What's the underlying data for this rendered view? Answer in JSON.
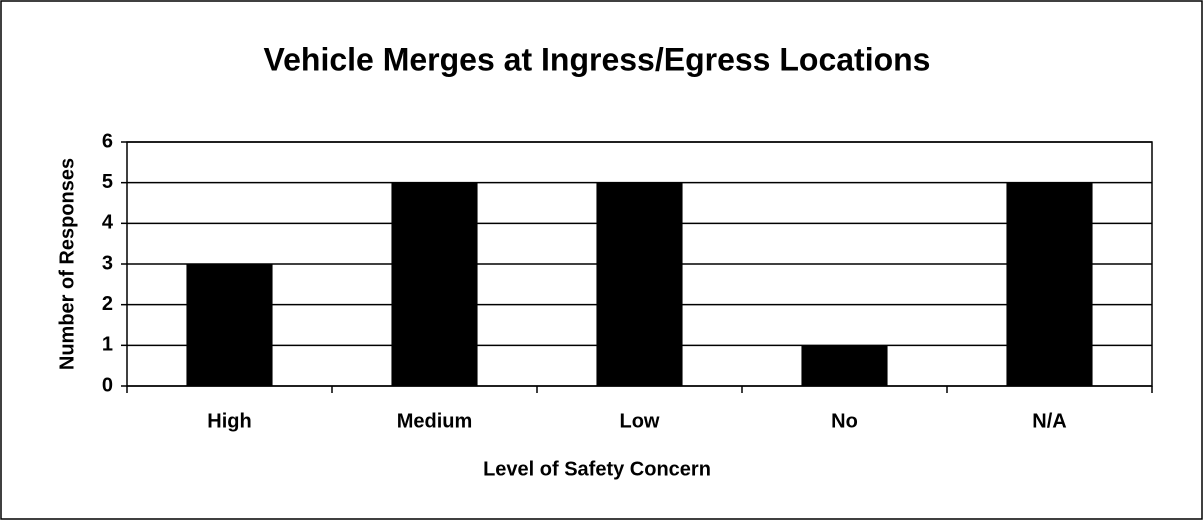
{
  "chart_data": {
    "type": "bar",
    "title": "Vehicle Merges at Ingress/Egress Locations",
    "x_label": "Level of Safety Concern",
    "y_label": "Number of Responses",
    "categories": [
      "High",
      "Medium",
      "Low",
      "No",
      "N/A"
    ],
    "values": [
      3,
      5,
      5,
      1,
      5
    ],
    "color": "#000000",
    "ylim": [
      0,
      6
    ],
    "yticks": [
      0,
      1,
      2,
      3,
      4,
      5,
      6
    ],
    "grid": true
  }
}
